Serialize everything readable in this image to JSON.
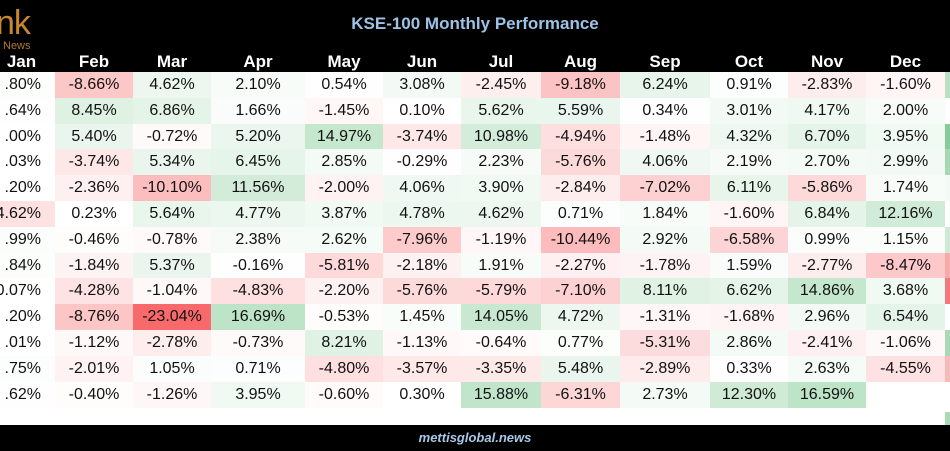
{
  "logo": {
    "text": "nk",
    "sub": "News"
  },
  "title": "KSE-100 Monthly Performance",
  "footer": "mettisglobal.news",
  "chart_data": {
    "type": "heatmap",
    "title": "KSE-100 Monthly Performance",
    "columns": [
      "Jan",
      "Feb",
      "Mar",
      "Apr",
      "May",
      "Jun",
      "Jul",
      "Aug",
      "Sep",
      "Oct",
      "Nov",
      "Dec"
    ],
    "rows": [
      [
        ".80%",
        "-8.66%",
        "4.62%",
        "2.10%",
        "0.54%",
        "3.08%",
        "-2.45%",
        "-9.18%",
        "6.24%",
        "0.91%",
        "-2.83%",
        "-1.60%"
      ],
      [
        ".64%",
        "8.45%",
        "6.86%",
        "1.66%",
        "-1.45%",
        "0.10%",
        "5.62%",
        "5.59%",
        "0.34%",
        "3.01%",
        "4.17%",
        "2.00%"
      ],
      [
        ".00%",
        "5.40%",
        "-0.72%",
        "5.20%",
        "14.97%",
        "-3.74%",
        "10.98%",
        "-4.94%",
        "-1.48%",
        "4.32%",
        "6.70%",
        "3.95%"
      ],
      [
        ".03%",
        "-3.74%",
        "5.34%",
        "6.45%",
        "2.85%",
        "-0.29%",
        "2.23%",
        "-5.76%",
        "4.06%",
        "2.19%",
        "2.70%",
        "2.99%"
      ],
      [
        ".20%",
        "-2.36%",
        "-10.10%",
        "11.56%",
        "-2.00%",
        "4.06%",
        "3.90%",
        "-2.84%",
        "-7.02%",
        "6.11%",
        "-5.86%",
        "1.74%"
      ],
      [
        "4.62%",
        "0.23%",
        "5.64%",
        "4.77%",
        "3.87%",
        "4.78%",
        "4.62%",
        "0.71%",
        "1.84%",
        "-1.60%",
        "6.84%",
        "12.16%"
      ],
      [
        ".99%",
        "-0.46%",
        "-0.78%",
        "2.38%",
        "2.62%",
        "-7.96%",
        "-1.19%",
        "-10.44%",
        "2.92%",
        "-6.58%",
        "0.99%",
        "1.15%"
      ],
      [
        ".84%",
        "-1.84%",
        "5.37%",
        "-0.16%",
        "-5.81%",
        "-2.18%",
        "1.91%",
        "-2.27%",
        "-1.78%",
        "1.59%",
        "-2.77%",
        "-8.47%"
      ],
      [
        "0.07%",
        "-4.28%",
        "-1.04%",
        "-4.83%",
        "-2.20%",
        "-5.76%",
        "-5.79%",
        "-7.10%",
        "8.11%",
        "6.62%",
        "14.86%",
        "3.68%"
      ],
      [
        ".20%",
        "-8.76%",
        "-23.04%",
        "16.69%",
        "-0.53%",
        "1.45%",
        "14.05%",
        "4.72%",
        "-1.31%",
        "-1.68%",
        "2.96%",
        "6.54%"
      ],
      [
        ".01%",
        "-1.12%",
        "-2.78%",
        "-0.73%",
        "8.21%",
        "-1.13%",
        "-0.64%",
        "0.77%",
        "-5.31%",
        "2.86%",
        "-2.41%",
        "-1.06%"
      ],
      [
        ".75%",
        "-2.01%",
        "1.05%",
        "0.71%",
        "-4.80%",
        "-3.57%",
        "-3.35%",
        "5.48%",
        "-2.89%",
        "0.33%",
        "2.63%",
        "-4.55%"
      ],
      [
        ".62%",
        "-0.40%",
        "-1.26%",
        "3.95%",
        "-0.60%",
        "0.30%",
        "15.88%",
        "-6.31%",
        "2.73%",
        "12.30%",
        "16.59%",
        ""
      ]
    ],
    "jan_signs": [
      1,
      1,
      1,
      1,
      1,
      -1,
      1,
      1,
      1,
      1,
      1,
      1,
      1
    ],
    "color_scale": {
      "negative": "#f8696b",
      "mid": "#ffffff",
      "positive": "#63be7b",
      "min": -23.04,
      "max": 40
    },
    "edge_strip": [
      "#b9e0c3",
      "#ffffff",
      "#86cc98",
      "#a6d8b2",
      "#f4fbf6",
      "#ffffff",
      "#cfe9d6",
      "#f8a9aa",
      "#f7787a",
      "#ffffff",
      "#a9d9b5",
      "#f7b9ba",
      "#ffffff"
    ]
  }
}
